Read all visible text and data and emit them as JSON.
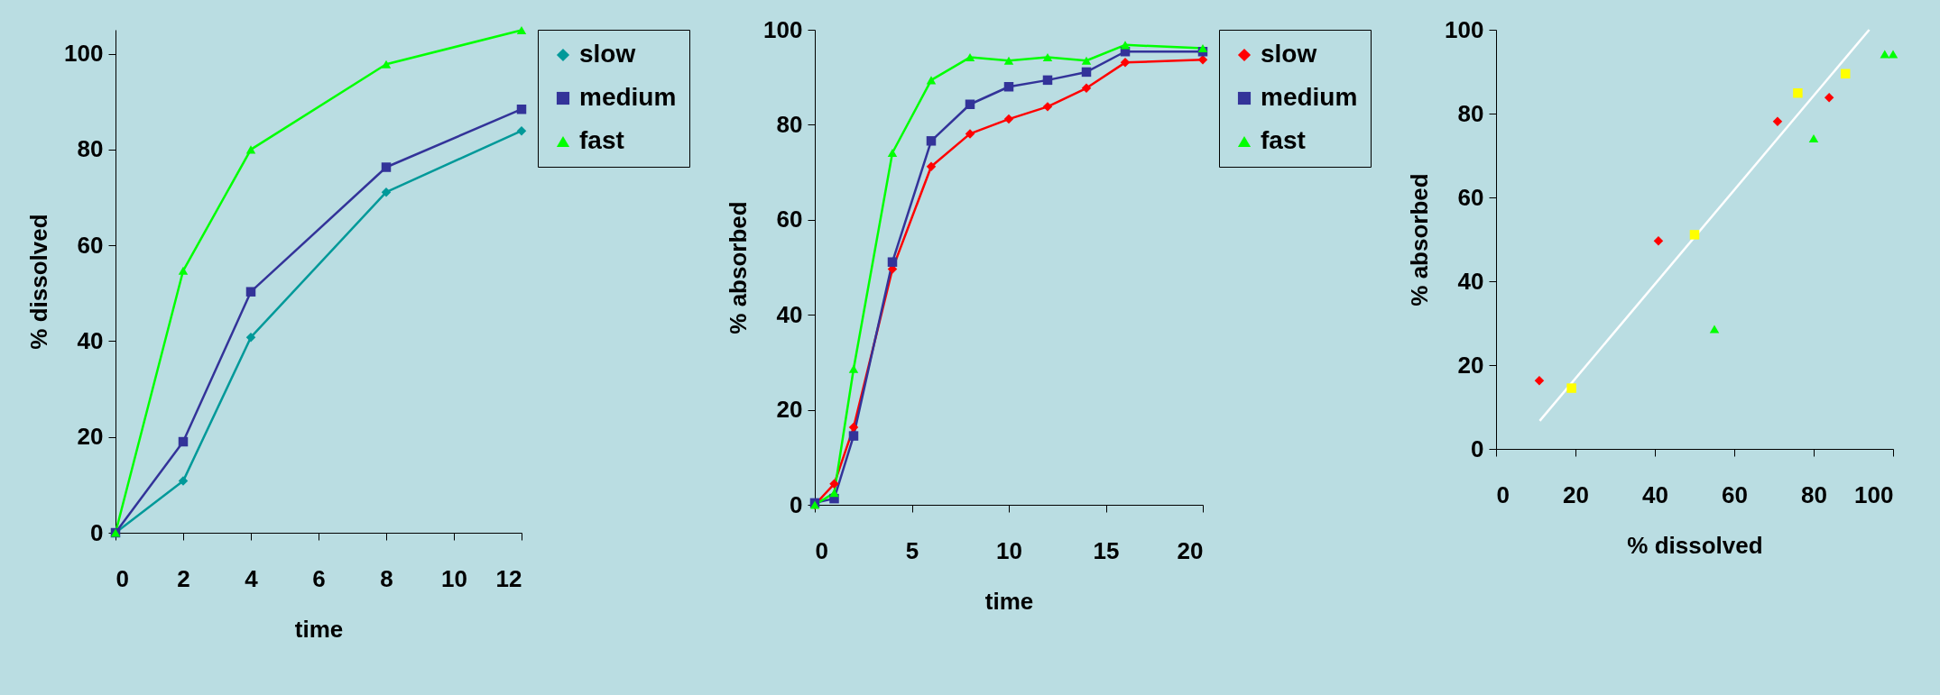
{
  "chart_data": [
    {
      "type": "line",
      "xlabel": "time",
      "ylabel": "% dissolved",
      "x": [
        0,
        2,
        4,
        8,
        12
      ],
      "xlim": [
        0,
        12
      ],
      "xticks": [
        0,
        2,
        4,
        6,
        8,
        10,
        12
      ],
      "ylim": [
        0,
        105
      ],
      "yticks": [
        0,
        20,
        40,
        60,
        80,
        100
      ],
      "grid": false,
      "legend": "right",
      "series": [
        {
          "name": "slow",
          "color": "#009999",
          "marker": "diamond",
          "values": [
            0,
            10.8,
            40.8,
            71.1,
            83.9
          ]
        },
        {
          "name": "medium",
          "color": "#333399",
          "marker": "square",
          "values": [
            0,
            19,
            50.3,
            76.3,
            88.4
          ]
        },
        {
          "name": "fast",
          "color": "#00ff00",
          "marker": "triangle",
          "values": [
            0,
            54.7,
            80,
            97.8,
            104.9
          ]
        }
      ]
    },
    {
      "type": "line",
      "xlabel": "time",
      "ylabel": "% absorbed",
      "x": [
        0,
        1,
        2,
        4,
        6,
        8,
        10,
        12,
        14,
        16,
        20
      ],
      "xlim": [
        0,
        20
      ],
      "xticks": [
        0,
        5,
        10,
        15,
        20
      ],
      "ylim": [
        0,
        100
      ],
      "yticks": [
        0,
        20,
        40,
        60,
        80,
        100
      ],
      "grid": false,
      "legend": "right",
      "series": [
        {
          "name": "slow",
          "color": "#ff0000",
          "marker": "diamond",
          "values": [
            0,
            4.4,
            16.3,
            49.6,
            71.2,
            78.1,
            81.2,
            83.8,
            87.7,
            93.1,
            93.7
          ]
        },
        {
          "name": "medium",
          "color": "#333399",
          "marker": "square",
          "values": [
            0.4,
            1.3,
            14.5,
            51.1,
            76.6,
            84.3,
            88,
            89.4,
            91.1,
            95.4,
            95.4
          ]
        },
        {
          "name": "fast",
          "color": "#00ff00",
          "marker": "triangle",
          "values": [
            0,
            2.5,
            28.6,
            74.1,
            89.4,
            94.2,
            93.5,
            94.2,
            93.5,
            96.8,
            96.1
          ]
        }
      ]
    },
    {
      "type": "scatter",
      "xlabel": "% dissolved",
      "ylabel": "% absorbed",
      "xlim": [
        0,
        100
      ],
      "xticks": [
        0,
        20,
        40,
        60,
        80,
        100
      ],
      "ylim": [
        0,
        100
      ],
      "yticks": [
        0,
        20,
        40,
        60,
        80,
        100
      ],
      "grid": false,
      "legend": false,
      "series": [
        {
          "color": "#ff0000",
          "marker": "diamond",
          "x": [
            10.9,
            40.9,
            70.9,
            83.9
          ],
          "values": [
            16.3,
            49.6,
            78.1,
            83.8
          ]
        },
        {
          "color": "#ffff00",
          "marker": "square",
          "x": [
            19,
            50,
            76,
            88
          ],
          "values": [
            14.5,
            51.1,
            84.9,
            89.5
          ]
        },
        {
          "color": "#00ff00",
          "marker": "triangle",
          "x": [
            55,
            80,
            97.9,
            100
          ],
          "values": [
            28.6,
            74.1,
            94.2,
            94.2
          ]
        },
        {
          "type": "line",
          "color": "#ffffff",
          "marker": "none",
          "x": [
            11,
            94
          ],
          "values": [
            6.7,
            100
          ]
        }
      ]
    }
  ]
}
